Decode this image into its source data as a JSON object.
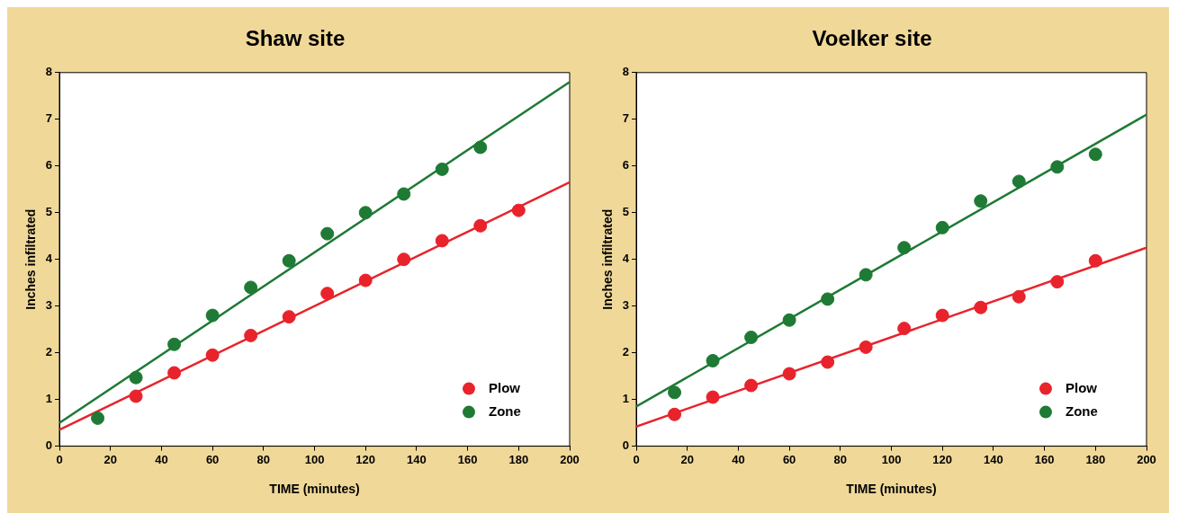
{
  "chart_data": [
    {
      "type": "scatter",
      "title": "Shaw site",
      "xlabel": "TIME (minutes)",
      "ylabel": "Inches infiltrated",
      "xlim": [
        0,
        200
      ],
      "xticks": [
        0,
        20,
        40,
        60,
        80,
        100,
        120,
        140,
        160,
        180,
        200
      ],
      "ylim": [
        0,
        8
      ],
      "yticks": [
        0,
        1,
        2,
        3,
        4,
        5,
        6,
        7,
        8
      ],
      "grid": false,
      "legend": "bottom right",
      "series": [
        {
          "name": "Plow",
          "marker": "circle",
          "color": "#e8232b",
          "x": [
            30,
            45,
            60,
            75,
            90,
            105,
            120,
            135,
            150,
            165,
            180
          ],
          "values": [
            1.07,
            1.57,
            1.95,
            2.37,
            2.77,
            3.27,
            3.55,
            4.0,
            4.4,
            4.72,
            5.05
          ]
        },
        {
          "name": "Zone",
          "marker": "circle",
          "color": "#1e7a34",
          "x": [
            15,
            30,
            45,
            60,
            75,
            90,
            105,
            120,
            135,
            150,
            165
          ],
          "values": [
            0.6,
            1.47,
            2.18,
            2.8,
            3.4,
            3.97,
            4.55,
            5.0,
            5.4,
            5.93,
            6.4
          ]
        },
        {
          "type": "line",
          "marker": "none",
          "color": "#e8232b",
          "x": [
            0,
            200
          ],
          "values": [
            0.35,
            5.65
          ]
        },
        {
          "type": "line",
          "marker": "none",
          "color": "#1e7a34",
          "x": [
            0,
            200
          ],
          "values": [
            0.5,
            7.8
          ]
        }
      ]
    },
    {
      "type": "scatter",
      "title": "Voelker site",
      "xlabel": "TIME (minutes)",
      "ylabel": "Inches infiltrated",
      "xlim": [
        0,
        200
      ],
      "xticks": [
        0,
        20,
        40,
        60,
        80,
        100,
        120,
        140,
        160,
        180,
        200
      ],
      "ylim": [
        0,
        8
      ],
      "yticks": [
        0,
        1,
        2,
        3,
        4,
        5,
        6,
        7,
        8
      ],
      "grid": false,
      "legend": "bottom right",
      "series": [
        {
          "name": "Plow",
          "marker": "circle",
          "color": "#e8232b",
          "x": [
            15,
            30,
            45,
            60,
            75,
            90,
            105,
            120,
            135,
            150,
            165,
            180
          ],
          "values": [
            0.68,
            1.05,
            1.3,
            1.55,
            1.8,
            2.12,
            2.52,
            2.8,
            2.97,
            3.2,
            3.52,
            3.97
          ]
        },
        {
          "name": "Zone",
          "marker": "circle",
          "color": "#1e7a34",
          "x": [
            15,
            30,
            45,
            60,
            75,
            90,
            105,
            120,
            135,
            150,
            165,
            180
          ],
          "values": [
            1.15,
            1.83,
            2.33,
            2.7,
            3.15,
            3.67,
            4.25,
            4.68,
            5.25,
            5.67,
            5.98,
            6.25
          ]
        },
        {
          "type": "line",
          "marker": "none",
          "color": "#e8232b",
          "x": [
            0,
            200
          ],
          "values": [
            0.42,
            4.25
          ]
        },
        {
          "type": "line",
          "marker": "none",
          "color": "#1e7a34",
          "x": [
            0,
            200
          ],
          "values": [
            0.85,
            7.1
          ]
        }
      ]
    }
  ]
}
